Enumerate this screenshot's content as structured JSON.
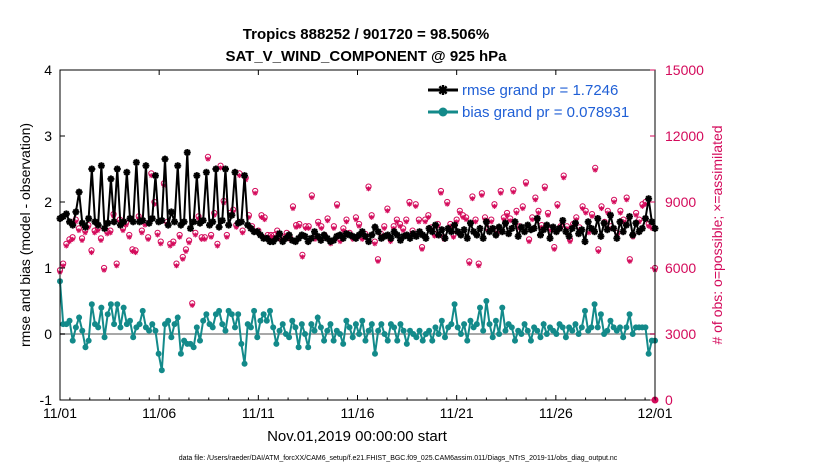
{
  "chart_data": {
    "type": "line",
    "title": "Tropics 888252 / 901720 = 98.506%",
    "subtitle": "SAT_V_WIND_COMPONENT @ 925 hPa",
    "xlabel": "Nov.01,2019 00:00:00 start",
    "ylabel": "rmse and bias (model - observation)",
    "y2label": "# of obs: o=possible; ×=assimilated",
    "xlim": [
      0,
      30
    ],
    "ylim": [
      -1,
      4
    ],
    "y2lim": [
      0,
      15000
    ],
    "x_ticks": [
      0,
      5,
      10,
      15,
      20,
      25,
      30
    ],
    "x_tick_labels": [
      "11/01",
      "11/06",
      "11/11",
      "11/16",
      "11/21",
      "11/26",
      "12/01"
    ],
    "y_ticks": [
      -1,
      0,
      1,
      2,
      3,
      4
    ],
    "y2_ticks": [
      0,
      3000,
      6000,
      9000,
      12000,
      15000
    ],
    "colors": {
      "rmse": "#000000",
      "bias": "#138a8a",
      "obs": "#d40a5b",
      "legend_text": "#1f5fd6",
      "zero_line": "#a8a8a8"
    },
    "series": [
      {
        "name": "rmse grand pr = 1.7246",
        "axis": "left",
        "values": [
          1.75,
          1.78,
          1.82,
          1.7,
          1.65,
          1.85,
          2.15,
          1.68,
          1.62,
          1.75,
          2.5,
          1.7,
          1.65,
          2.55,
          1.6,
          1.68,
          2.35,
          1.7,
          2.5,
          1.65,
          1.7,
          2.45,
          1.75,
          1.7,
          2.6,
          1.7,
          1.72,
          2.55,
          1.68,
          1.75,
          2.4,
          1.7,
          1.72,
          2.65,
          1.65,
          1.85,
          1.7,
          2.55,
          1.65,
          1.7,
          2.75,
          1.6,
          1.7,
          2.4,
          1.68,
          1.72,
          2.45,
          1.65,
          1.7,
          2.5,
          1.62,
          1.72,
          2.5,
          1.65,
          1.8,
          2.45,
          1.68,
          1.7,
          2.4,
          1.65,
          1.6,
          1.55,
          1.55,
          1.5,
          1.45,
          1.45,
          1.4,
          1.4,
          1.45,
          1.52,
          1.4,
          1.45,
          1.5,
          1.42,
          1.4,
          1.45,
          1.5,
          1.48,
          1.4,
          1.45,
          1.55,
          1.48,
          1.42,
          1.5,
          1.45,
          1.4,
          1.42,
          1.48,
          1.5,
          1.45,
          1.52,
          1.5,
          1.48,
          1.45,
          1.5,
          1.55,
          1.48,
          1.4,
          1.5,
          1.62,
          1.55,
          1.45,
          1.48,
          1.5,
          1.45,
          1.55,
          1.5,
          1.42,
          1.48,
          1.5,
          1.45,
          1.52,
          1.48,
          1.55,
          1.5,
          1.45,
          1.6,
          1.55,
          1.65,
          1.5,
          1.58,
          1.45,
          1.6,
          1.55,
          1.65,
          1.55,
          1.5,
          1.58,
          1.45,
          1.68,
          1.55,
          1.5,
          1.6,
          1.45,
          1.7,
          1.55,
          1.6,
          1.5,
          1.62,
          1.55,
          1.68,
          1.52,
          1.6,
          1.7,
          1.48,
          1.62,
          1.55,
          1.65,
          1.58,
          1.6,
          1.75,
          1.5,
          1.58,
          1.65,
          1.45,
          1.62,
          1.55,
          1.6,
          1.72,
          1.55,
          1.48,
          1.6,
          1.68,
          1.52,
          1.58,
          1.4,
          1.7,
          1.6,
          1.55,
          1.75,
          1.48,
          1.68,
          1.58,
          1.8,
          1.6,
          1.45,
          1.7,
          1.55,
          1.65,
          1.78,
          1.5,
          1.68,
          1.55,
          1.6,
          1.75,
          2.05,
          1.7,
          1.6
        ]
      },
      {
        "name": "bias grand pr = 0.078931",
        "axis": "left",
        "values": [
          0.8,
          0.15,
          0.15,
          0.2,
          -0.1,
          0.1,
          0.25,
          0.05,
          -0.2,
          -0.1,
          0.45,
          0.15,
          0.1,
          0.4,
          -0.05,
          0.3,
          0.45,
          0.15,
          0.45,
          0.1,
          0.4,
          0.15,
          0.2,
          -0.05,
          0.1,
          0.15,
          0.35,
          0.1,
          0.05,
          0.15,
          0.05,
          -0.3,
          -0.55,
          0.15,
          0.2,
          -0.05,
          0.15,
          0.25,
          -0.3,
          -0.1,
          -0.15,
          -0.15,
          -0.2,
          0.1,
          -0.1,
          0.2,
          0.3,
          0.15,
          0.1,
          0.3,
          0.35,
          0.15,
          0.05,
          0.35,
          0.3,
          0.1,
          0.3,
          -0.15,
          -0.45,
          0.15,
          0.1,
          0.35,
          -0.05,
          0.2,
          0.3,
          0.2,
          0.35,
          0.1,
          -0.15,
          0.05,
          0.15,
          0.0,
          -0.05,
          0.2,
          0.1,
          -0.2,
          0.15,
          0.0,
          -0.2,
          0.15,
          0.05,
          0.25,
          0.1,
          -0.1,
          0.05,
          0.15,
          -0.1,
          0.05,
          0.0,
          -0.15,
          0.2,
          0.1,
          -0.05,
          0.15,
          0.0,
          0.2,
          -0.1,
          0.05,
          0.15,
          -0.3,
          0.05,
          0.15,
          0.0,
          -0.1,
          0.15,
          0.1,
          -0.1,
          0.15,
          0.05,
          -0.15,
          0.05,
          0.0,
          -0.05,
          0.05,
          -0.1,
          0.0,
          0.05,
          -0.1,
          0.1,
          0.0,
          0.2,
          -0.05,
          0.1,
          0.15,
          0.45,
          0.1,
          0.0,
          0.15,
          -0.1,
          0.2,
          0.1,
          0.15,
          0.4,
          0.05,
          0.5,
          0.15,
          -0.05,
          0.2,
          0.0,
          0.4,
          0.05,
          0.15,
          0.1,
          -0.1,
          0.05,
          0.0,
          0.15,
          0.05,
          -0.1,
          0.1,
          0.05,
          -0.05,
          0.15,
          0.0,
          0.1,
          0.05,
          0.0,
          0.15,
          0.1,
          -0.05,
          0.1,
          0.05,
          0.15,
          0.0,
          0.1,
          0.35,
          0.05,
          0.1,
          0.45,
          0.1,
          0.3,
          0.0,
          0.05,
          0.2,
          0.1,
          0.05,
          0.1,
          -0.05,
          0.1,
          0.3,
          0.0,
          0.1,
          0.1,
          0.1,
          0.1,
          -0.3,
          -0.1,
          -0.1
        ]
      }
    ],
    "obs_possible": [
      5900,
      6200,
      7100,
      7300,
      7400,
      8200,
      7800,
      7350,
      7700,
      7950,
      6800,
      7700,
      7800,
      7350,
      6000,
      7650,
      7700,
      8450,
      6200,
      8200,
      7800,
      8050,
      7500,
      6850,
      6800,
      8350,
      7700,
      8050,
      7400,
      10300,
      9000,
      7600,
      7200,
      9850,
      8100,
      7100,
      7200,
      6200,
      7500,
      6500,
      6850,
      7250,
      4400,
      7600,
      8350,
      7400,
      7400,
      11050,
      7500,
      8500,
      7100,
      10650,
      9050,
      7500,
      8500,
      8650,
      7950,
      10300,
      7700,
      10100,
      8400,
      7900,
      9500,
      7700,
      8400,
      8300,
      7500,
      7500,
      7500,
      7700,
      7400,
      7400,
      7600,
      7400,
      8800,
      7950,
      8000,
      6600,
      7900,
      7900,
      9300,
      7400,
      8100,
      7900,
      7500,
      8250,
      7200,
      7900,
      8900,
      7300,
      7800,
      8200,
      7600,
      7400,
      8300,
      8000,
      7400,
      7550,
      9700,
      8400,
      7200,
      6400,
      7550,
      7900,
      8700,
      7300,
      7900,
      8200,
      8000,
      7800,
      8200,
      9000,
      7700,
      8900,
      8200,
      6950,
      8200,
      8400,
      7850,
      7550,
      8000,
      9500,
      7400,
      9000,
      8000,
      7500,
      8200,
      8600,
      8400,
      8300,
      6300,
      9250,
      8200,
      6200,
      9400,
      8300,
      7800,
      8200,
      8900,
      7700,
      9500,
      8300,
      8500,
      8250,
      9550,
      8600,
      7900,
      8800,
      9900,
      7300,
      8300,
      9200,
      8600,
      7950,
      9700,
      8500,
      7800,
      6950,
      8900,
      7900,
      10200,
      7900,
      7300,
      8000,
      8300,
      7850,
      8800,
      8600,
      7700,
      8450,
      10550,
      6850,
      8800,
      8100,
      8600,
      7900,
      9100,
      7600,
      8600,
      8200,
      9200,
      6400,
      7500,
      8500,
      8200,
      8900,
      9000,
      8000,
      7900,
      6000
    ],
    "obs_assimilated": [
      5800,
      6100,
      7000,
      7200,
      7300,
      8100,
      7700,
      7250,
      7600,
      7850,
      6700,
      7600,
      7700,
      7250,
      5900,
      7550,
      7600,
      8350,
      6100,
      8100,
      7700,
      7950,
      7400,
      6750,
      6700,
      8250,
      7600,
      7950,
      7300,
      10200,
      8900,
      7500,
      7100,
      9750,
      8000,
      7000,
      7100,
      6100,
      7400,
      6400,
      6750,
      7150,
      4300,
      7500,
      8250,
      7300,
      7300,
      10950,
      7400,
      8400,
      7000,
      10550,
      8950,
      7400,
      8400,
      8550,
      7850,
      10200,
      7600,
      10000,
      8300,
      7800,
      9400,
      7600,
      8300,
      8200,
      7400,
      7400,
      7400,
      7600,
      7300,
      7300,
      7500,
      7300,
      8700,
      7850,
      7900,
      6500,
      7800,
      7800,
      9200,
      7300,
      8000,
      7800,
      7400,
      8150,
      7100,
      7800,
      8800,
      7200,
      7700,
      8100,
      7500,
      7300,
      8200,
      7900,
      7300,
      7450,
      9600,
      8300,
      7100,
      6300,
      7450,
      7800,
      8600,
      7200,
      7800,
      8100,
      7900,
      7700,
      8100,
      8900,
      7600,
      8800,
      8100,
      6850,
      8100,
      8300,
      7750,
      7450,
      7900,
      9400,
      7300,
      8900,
      7900,
      7400,
      8100,
      8500,
      8300,
      8200,
      6200,
      9150,
      8100,
      6100,
      9300,
      8200,
      7700,
      8100,
      8800,
      7600,
      9400,
      8200,
      8400,
      8150,
      9450,
      8500,
      7800,
      8700,
      9800,
      7200,
      8200,
      9100,
      8500,
      7850,
      9600,
      8400,
      7700,
      6850,
      8800,
      7800,
      10100,
      7800,
      7200,
      7900,
      8200,
      7750,
      8700,
      8500,
      7600,
      8350,
      10450,
      6750,
      8700,
      8000,
      8500,
      7800,
      9000,
      7500,
      8500,
      8100,
      9100,
      6300,
      7400,
      8400,
      8100,
      8800,
      8900,
      7900,
      7800,
      5900
    ],
    "footer": "data file: /Users/raeder/DAI/ATM_forcXX/CAM6_setup/f.e21.FHIST_BGC.f09_025.CAM6assim.011/Diags_NTrS_2019-11/obs_diag_output.nc"
  }
}
